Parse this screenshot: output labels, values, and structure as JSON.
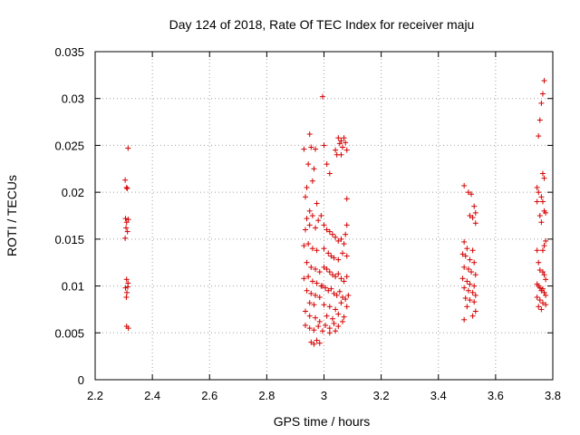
{
  "chart_data": {
    "type": "scatter",
    "title": "Day 124 of 2018, Rate Of TEC Index for receiver maju",
    "xlabel": "GPS time / hours",
    "ylabel": "ROTI / TECUs",
    "xlim": [
      2.2,
      3.8
    ],
    "ylim": [
      0,
      0.035
    ],
    "x_ticks": [
      2.2,
      2.4,
      2.6,
      2.8,
      3.0,
      3.2,
      3.4,
      3.6,
      3.8
    ],
    "x_tick_labels": [
      "2.2",
      "2.4",
      "2.6",
      "2.8",
      "3",
      "3.2",
      "3.4",
      "3.6",
      "3.8"
    ],
    "y_ticks": [
      0,
      0.005,
      0.01,
      0.015,
      0.02,
      0.025,
      0.03,
      0.035
    ],
    "y_tick_labels": [
      "0",
      "0.005",
      "0.01",
      "0.015",
      "0.02",
      "0.025",
      "0.03",
      "0.035"
    ],
    "grid": true,
    "marker": "+",
    "marker_color": "#d40000",
    "series": [
      {
        "name": "ROTI",
        "points": [
          [
            2.305,
            0.0213
          ],
          [
            2.31,
            0.0205
          ],
          [
            2.315,
            0.0247
          ],
          [
            2.312,
            0.0204
          ],
          [
            2.306,
            0.0172
          ],
          [
            2.31,
            0.0168
          ],
          [
            2.316,
            0.0171
          ],
          [
            2.308,
            0.0162
          ],
          [
            2.313,
            0.0158
          ],
          [
            2.305,
            0.0151
          ],
          [
            2.31,
            0.0107
          ],
          [
            2.315,
            0.0103
          ],
          [
            2.306,
            0.0098
          ],
          [
            2.311,
            0.0093
          ],
          [
            2.314,
            0.0099
          ],
          [
            2.309,
            0.0088
          ],
          [
            2.31,
            0.0057
          ],
          [
            2.316,
            0.0055
          ],
          [
            2.93,
            0.0246
          ],
          [
            2.95,
            0.0262
          ],
          [
            2.97,
            0.0246
          ],
          [
            2.955,
            0.0248
          ],
          [
            2.94,
            0.0205
          ],
          [
            2.96,
            0.0212
          ],
          [
            2.945,
            0.023
          ],
          [
            2.965,
            0.0225
          ],
          [
            2.935,
            0.0195
          ],
          [
            2.975,
            0.0188
          ],
          [
            2.95,
            0.018
          ],
          [
            2.94,
            0.0172
          ],
          [
            2.96,
            0.0175
          ],
          [
            2.98,
            0.017
          ],
          [
            2.935,
            0.016
          ],
          [
            2.95,
            0.0165
          ],
          [
            2.97,
            0.0162
          ],
          [
            2.93,
            0.0143
          ],
          [
            2.945,
            0.0145
          ],
          [
            2.96,
            0.014
          ],
          [
            2.975,
            0.0138
          ],
          [
            2.94,
            0.0125
          ],
          [
            2.955,
            0.012
          ],
          [
            2.97,
            0.0118
          ],
          [
            2.985,
            0.0115
          ],
          [
            2.93,
            0.0108
          ],
          [
            2.945,
            0.011
          ],
          [
            2.96,
            0.0105
          ],
          [
            2.975,
            0.0103
          ],
          [
            2.99,
            0.01
          ],
          [
            2.94,
            0.0095
          ],
          [
            2.955,
            0.0092
          ],
          [
            2.97,
            0.009
          ],
          [
            2.985,
            0.0088
          ],
          [
            2.95,
            0.0082
          ],
          [
            2.965,
            0.008
          ],
          [
            2.935,
            0.0073
          ],
          [
            2.95,
            0.0068
          ],
          [
            2.97,
            0.0066
          ],
          [
            2.985,
            0.0062
          ],
          [
            2.935,
            0.0058
          ],
          [
            2.95,
            0.0055
          ],
          [
            2.965,
            0.0053
          ],
          [
            2.98,
            0.0057
          ],
          [
            2.995,
            0.0052
          ],
          [
            2.955,
            0.004
          ],
          [
            2.965,
            0.0038
          ],
          [
            2.975,
            0.0042
          ],
          [
            2.985,
            0.0039
          ],
          [
            2.995,
            0.0302
          ],
          [
            3.0,
            0.025
          ],
          [
            3.01,
            0.023
          ],
          [
            3.02,
            0.022
          ],
          [
            3.04,
            0.0245
          ],
          [
            3.05,
            0.0258
          ],
          [
            3.055,
            0.0252
          ],
          [
            3.06,
            0.0255
          ],
          [
            3.065,
            0.0248
          ],
          [
            3.07,
            0.0258
          ],
          [
            3.075,
            0.0253
          ],
          [
            3.08,
            0.0245
          ],
          [
            3.06,
            0.024
          ],
          [
            3.045,
            0.024
          ],
          [
            3.08,
            0.0193
          ],
          [
            2.99,
            0.0175
          ],
          [
            3.0,
            0.0165
          ],
          [
            3.01,
            0.016
          ],
          [
            3.02,
            0.0158
          ],
          [
            3.03,
            0.0155
          ],
          [
            3.04,
            0.0152
          ],
          [
            3.05,
            0.0148
          ],
          [
            3.06,
            0.015
          ],
          [
            3.07,
            0.0145
          ],
          [
            3.08,
            0.0165
          ],
          [
            3.075,
            0.0155
          ],
          [
            3.0,
            0.014
          ],
          [
            3.015,
            0.0135
          ],
          [
            3.025,
            0.0132
          ],
          [
            3.035,
            0.013
          ],
          [
            3.05,
            0.0128
          ],
          [
            3.065,
            0.0135
          ],
          [
            3.08,
            0.0132
          ],
          [
            3.0,
            0.012
          ],
          [
            3.01,
            0.0118
          ],
          [
            3.02,
            0.0115
          ],
          [
            3.03,
            0.0112
          ],
          [
            3.04,
            0.011
          ],
          [
            3.05,
            0.0113
          ],
          [
            3.06,
            0.0108
          ],
          [
            3.07,
            0.0105
          ],
          [
            3.08,
            0.011
          ],
          [
            2.995,
            0.01
          ],
          [
            3.005,
            0.0098
          ],
          [
            3.015,
            0.0095
          ],
          [
            3.025,
            0.0097
          ],
          [
            3.035,
            0.0092
          ],
          [
            3.045,
            0.009
          ],
          [
            3.055,
            0.0094
          ],
          [
            3.065,
            0.0088
          ],
          [
            3.075,
            0.0086
          ],
          [
            3.085,
            0.009
          ],
          [
            3.0,
            0.008
          ],
          [
            3.02,
            0.0078
          ],
          [
            3.04,
            0.0075
          ],
          [
            3.06,
            0.0082
          ],
          [
            3.08,
            0.0078
          ],
          [
            3.01,
            0.0068
          ],
          [
            3.03,
            0.0065
          ],
          [
            3.05,
            0.007
          ],
          [
            3.07,
            0.0067
          ],
          [
            3.005,
            0.0058
          ],
          [
            3.02,
            0.0055
          ],
          [
            3.035,
            0.006
          ],
          [
            3.05,
            0.0057
          ],
          [
            3.065,
            0.0062
          ],
          [
            3.02,
            0.005
          ],
          [
            3.04,
            0.0052
          ],
          [
            3.49,
            0.0207
          ],
          [
            3.505,
            0.02
          ],
          [
            3.515,
            0.0198
          ],
          [
            3.525,
            0.0185
          ],
          [
            3.53,
            0.0178
          ],
          [
            3.52,
            0.0173
          ],
          [
            3.51,
            0.0175
          ],
          [
            3.53,
            0.0167
          ],
          [
            3.49,
            0.0147
          ],
          [
            3.5,
            0.014
          ],
          [
            3.52,
            0.0138
          ],
          [
            3.485,
            0.0134
          ],
          [
            3.495,
            0.0132
          ],
          [
            3.51,
            0.0128
          ],
          [
            3.525,
            0.0125
          ],
          [
            3.49,
            0.012
          ],
          [
            3.505,
            0.0118
          ],
          [
            3.515,
            0.0115
          ],
          [
            3.53,
            0.0112
          ],
          [
            3.485,
            0.0108
          ],
          [
            3.5,
            0.0105
          ],
          [
            3.51,
            0.0102
          ],
          [
            3.525,
            0.01
          ],
          [
            3.49,
            0.0098
          ],
          [
            3.505,
            0.0095
          ],
          [
            3.52,
            0.0093
          ],
          [
            3.53,
            0.009
          ],
          [
            3.495,
            0.0087
          ],
          [
            3.51,
            0.0085
          ],
          [
            3.525,
            0.0083
          ],
          [
            3.5,
            0.0078
          ],
          [
            3.53,
            0.0073
          ],
          [
            3.49,
            0.0064
          ],
          [
            3.52,
            0.0068
          ],
          [
            3.77,
            0.0319
          ],
          [
            3.765,
            0.0305
          ],
          [
            3.76,
            0.0295
          ],
          [
            3.755,
            0.0277
          ],
          [
            3.75,
            0.026
          ],
          [
            3.765,
            0.022
          ],
          [
            3.77,
            0.0215
          ],
          [
            3.745,
            0.0205
          ],
          [
            3.75,
            0.02
          ],
          [
            3.76,
            0.0195
          ],
          [
            3.745,
            0.019
          ],
          [
            3.765,
            0.019
          ],
          [
            3.77,
            0.018
          ],
          [
            3.775,
            0.0178
          ],
          [
            3.755,
            0.0175
          ],
          [
            3.76,
            0.0168
          ],
          [
            3.775,
            0.0148
          ],
          [
            3.77,
            0.0143
          ],
          [
            3.765,
            0.0138
          ],
          [
            3.745,
            0.0138
          ],
          [
            3.75,
            0.0125
          ],
          [
            3.755,
            0.0117
          ],
          [
            3.765,
            0.0115
          ],
          [
            3.77,
            0.0112
          ],
          [
            3.775,
            0.0107
          ],
          [
            3.745,
            0.0102
          ],
          [
            3.75,
            0.01
          ],
          [
            3.755,
            0.0098
          ],
          [
            3.76,
            0.0095
          ],
          [
            3.765,
            0.0097
          ],
          [
            3.77,
            0.0093
          ],
          [
            3.775,
            0.009
          ],
          [
            3.745,
            0.0088
          ],
          [
            3.755,
            0.0085
          ],
          [
            3.765,
            0.0082
          ],
          [
            3.75,
            0.0078
          ],
          [
            3.76,
            0.0075
          ],
          [
            3.775,
            0.008
          ]
        ]
      }
    ]
  }
}
